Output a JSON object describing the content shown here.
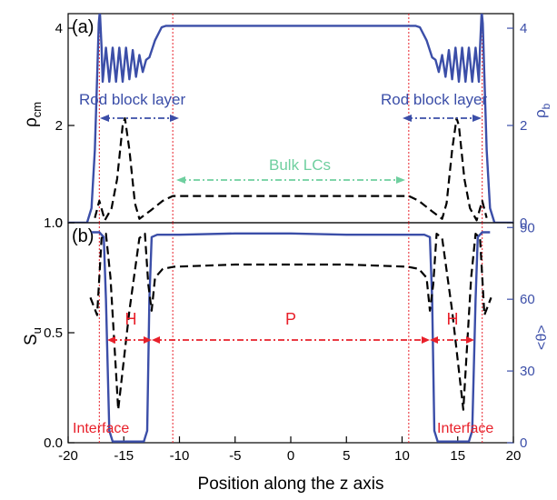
{
  "chart_data": [
    {
      "panel_label": "(a)",
      "type": "line",
      "ylabel_left": "ρcm",
      "ylabel_left_main": "ρ",
      "ylabel_left_sub": "cm",
      "ylabel_right": "ρb",
      "ylabel_right_main": "ρ",
      "ylabel_right_sub": "b",
      "xlim": [
        -20,
        20
      ],
      "ylim_left": [
        0,
        4.3
      ],
      "ylim_right": [
        0,
        4.3
      ],
      "yticks_left": [
        "0",
        "2",
        "4"
      ],
      "yticks_right": [
        "0",
        "2",
        "4"
      ],
      "annotations": {
        "rod_block_left": "Rod block layer",
        "rod_block_right": "Rod block layer",
        "bulk": "Bulk LCs"
      },
      "annotation_colors": {
        "rod_block": "#3b4ea8",
        "bulk": "#6fcf9f"
      },
      "series": [
        {
          "axis": "right",
          "style": "solid",
          "color": "#3b4ea8",
          "x": [
            -20,
            -18.3,
            -17.9,
            -17.6,
            -17.4,
            -17.25,
            -17.15,
            -17.0,
            -16.9,
            -16.6,
            -16.3,
            -16.0,
            -15.7,
            -15.4,
            -15.1,
            -14.8,
            -14.5,
            -14.2,
            -13.9,
            -13.6,
            -13.3,
            -13.0,
            -12.7,
            -12.2,
            -11.6,
            -11.2,
            -10.8,
            -10.4,
            -5,
            0,
            5,
            10.4,
            10.8,
            11.2,
            11.6,
            12.2,
            12.7,
            13.0,
            13.3,
            13.6,
            13.9,
            14.2,
            14.5,
            14.8,
            15.1,
            15.4,
            15.7,
            16.0,
            16.3,
            16.6,
            16.9,
            17.0,
            17.15,
            17.25,
            17.4,
            17.6,
            17.9,
            18.3,
            20
          ],
          "values": [
            0,
            0,
            0.3,
            1.5,
            3.0,
            4.1,
            4.35,
            3.6,
            2.9,
            3.6,
            2.9,
            3.6,
            2.9,
            3.6,
            2.9,
            3.6,
            2.95,
            3.55,
            3.0,
            3.45,
            3.1,
            3.35,
            3.4,
            3.75,
            4.02,
            4.05,
            4.05,
            4.05,
            4.05,
            4.05,
            4.05,
            4.05,
            4.05,
            4.05,
            4.02,
            3.75,
            3.4,
            3.35,
            3.1,
            3.45,
            3.0,
            3.55,
            2.95,
            3.6,
            2.9,
            3.6,
            2.9,
            3.6,
            2.9,
            3.6,
            2.9,
            3.6,
            4.35,
            4.1,
            3.0,
            1.5,
            0.3,
            0,
            0
          ]
        },
        {
          "axis": "left",
          "style": "dashed",
          "color": "#000000",
          "x": [
            -17.6,
            -17.2,
            -16.7,
            -16.1,
            -15.6,
            -15.1,
            -14.9,
            -14.5,
            -14.0,
            -13.6,
            -12.6,
            -11.5,
            -10.6,
            -5,
            0,
            5,
            10.6,
            11.5,
            12.6,
            13.6,
            14.0,
            14.5,
            14.9,
            15.1,
            15.6,
            16.1,
            16.7,
            17.2,
            17.6
          ],
          "values": [
            0.1,
            0.45,
            0.05,
            0.3,
            0.9,
            2.0,
            2.15,
            1.5,
            0.4,
            0.08,
            0.25,
            0.45,
            0.55,
            0.55,
            0.55,
            0.55,
            0.55,
            0.45,
            0.25,
            0.08,
            0.4,
            1.5,
            2.15,
            2.0,
            0.9,
            0.3,
            0.05,
            0.45,
            0.1
          ]
        }
      ]
    },
    {
      "panel_label": "(b)",
      "type": "line",
      "xlabel": "Position along the z axis",
      "ylabel_left": "Su",
      "ylabel_left_main": "S",
      "ylabel_left_sub": "u",
      "ylabel_right": "<θ>",
      "xlim": [
        -20,
        20
      ],
      "ylim_left": [
        0,
        1.0
      ],
      "ylim_right": [
        0,
        92
      ],
      "xticks": [
        "-20",
        "-15",
        "-10",
        "-5",
        "0",
        "5",
        "10",
        "15",
        "20"
      ],
      "yticks_left": [
        "0.0",
        "0.5",
        "1.0"
      ],
      "yticks_right": [
        "0",
        "30",
        "60",
        "90"
      ],
      "regions": {
        "H_left": "H",
        "P": "P",
        "H_right": "H"
      },
      "annotations": {
        "interface_left": "Interface",
        "interface_right": "Interface"
      },
      "annotation_color": "#e8202a",
      "series": [
        {
          "axis": "right",
          "style": "solid",
          "color": "#3b4ea8",
          "x": [
            -17.9,
            -17.2,
            -16.8,
            -16.6,
            -16.3,
            -16.0,
            -14.5,
            -13.2,
            -12.9,
            -12.7,
            -12.5,
            -12.0,
            -10,
            -5,
            0,
            5,
            10,
            12.0,
            12.5,
            12.7,
            12.9,
            13.2,
            14.5,
            16.0,
            16.3,
            16.6,
            16.8,
            17.2,
            17.9
          ],
          "values": [
            88,
            88,
            86,
            60,
            5,
            0.5,
            0.5,
            0.5,
            5,
            60,
            86,
            87,
            87,
            87.5,
            87.5,
            87,
            87,
            87,
            86,
            60,
            5,
            0.5,
            0.5,
            0.5,
            5,
            60,
            86,
            88,
            88
          ]
        },
        {
          "axis": "left",
          "style": "dashed",
          "color": "#000000",
          "x": [
            -18.0,
            -17.4,
            -17.0,
            -16.6,
            -16.2,
            -15.5,
            -14.5,
            -13.6,
            -13.1,
            -12.8,
            -12.5,
            -12.2,
            -11.5,
            -10.5,
            -5,
            0,
            5,
            10.5,
            11.5,
            12.2,
            12.5,
            12.8,
            13.1,
            13.6,
            14.5,
            15.5,
            16.2,
            16.6,
            17.0,
            17.4,
            18.0
          ],
          "values": [
            0.66,
            0.58,
            0.93,
            0.95,
            0.75,
            0.15,
            0.6,
            0.93,
            0.95,
            0.72,
            0.6,
            0.75,
            0.79,
            0.8,
            0.81,
            0.81,
            0.81,
            0.8,
            0.79,
            0.75,
            0.6,
            0.72,
            0.95,
            0.93,
            0.6,
            0.15,
            0.75,
            0.95,
            0.93,
            0.58,
            0.66
          ]
        }
      ]
    }
  ]
}
